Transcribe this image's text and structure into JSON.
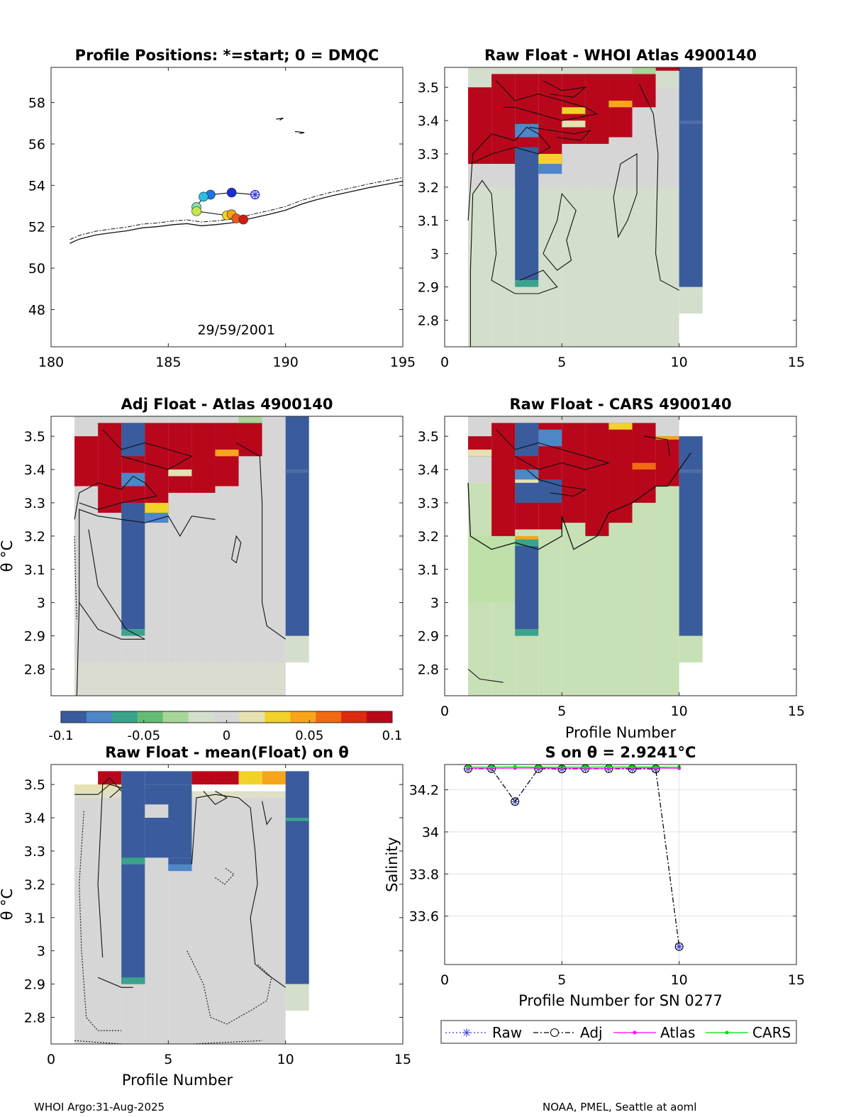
{
  "footer": {
    "left": "WHOI Argo:31-Aug-2025",
    "right": "NOAA, PMEL, Seattle at aoml"
  },
  "colors": {
    "raw": "#3b3bd6",
    "adj": "#000000",
    "atlas": "#ff00ff",
    "cars": "#00e000",
    "colormap": [
      "#3a5c9d",
      "#4f86c6",
      "#3aa38c",
      "#64bc74",
      "#a6d69a",
      "#d3dfcc",
      "#d6d6d6",
      "#e5e1b0",
      "#f1d22a",
      "#f7a51a",
      "#f06a12",
      "#dc2a10",
      "#b8071b"
    ]
  },
  "chart_data": [
    {
      "id": "positions",
      "type": "scatter",
      "title": "Profile Positions: *=start; 0 = DMQC",
      "xlim": [
        180,
        195
      ],
      "ylim": [
        46.2,
        59.7
      ],
      "xticks": [
        "180",
        "185",
        "190",
        "195"
      ],
      "yticks": [
        "48",
        "50",
        "52",
        "54",
        "56",
        "58"
      ],
      "annotation": "29/59/2001",
      "track": [
        {
          "x": 188.7,
          "y": 53.55,
          "c": "#3a3ad8",
          "marker": "star"
        },
        {
          "x": 187.7,
          "y": 53.65,
          "c": "#1a2cd8"
        },
        {
          "x": 186.8,
          "y": 53.55,
          "c": "#1a78e0"
        },
        {
          "x": 186.5,
          "y": 53.45,
          "c": "#27c0e6"
        },
        {
          "x": 186.2,
          "y": 52.95,
          "c": "#7fe3b8"
        },
        {
          "x": 186.2,
          "y": 52.75,
          "c": "#c4e84a"
        },
        {
          "x": 187.5,
          "y": 52.55,
          "c": "#f3d51e"
        },
        {
          "x": 187.7,
          "y": 52.6,
          "c": "#f7a21a"
        },
        {
          "x": 187.9,
          "y": 52.4,
          "c": "#ec5a18"
        },
        {
          "x": 188.2,
          "y": 52.35,
          "c": "#cf1f12"
        }
      ]
    },
    {
      "id": "whoi",
      "type": "heatmap",
      "title": "Raw Float - WHOI Atlas  4900140",
      "xlim": [
        0,
        15
      ],
      "ylim": [
        2.72,
        3.56
      ],
      "xticks": [
        "0",
        "5",
        "10",
        "15"
      ],
      "yticks": [
        "2.8",
        "2.9",
        "3",
        "3.1",
        "3.2",
        "3.3",
        "3.4",
        "3.5"
      ]
    },
    {
      "id": "adj",
      "type": "heatmap",
      "title": "Adj Float - Atlas  4900140",
      "ylabel": "θ °C",
      "xlim": [
        0,
        15
      ],
      "ylim": [
        2.72,
        3.56
      ],
      "yticks": [
        "2.8",
        "2.9",
        "3",
        "3.1",
        "3.2",
        "3.3",
        "3.4",
        "3.5"
      ],
      "colorbar": {
        "ticks": [
          "-0.1",
          "-0.05",
          "0",
          "0.05",
          "0.1"
        ],
        "range": [
          -0.1,
          0.1
        ]
      }
    },
    {
      "id": "cars",
      "type": "heatmap",
      "title": "Raw Float - CARS  4900140",
      "xlabel": "Profile Number",
      "xlim": [
        0,
        15
      ],
      "ylim": [
        2.72,
        3.56
      ],
      "xticks": [
        "0",
        "5",
        "10",
        "15"
      ],
      "yticks": [
        "2.8",
        "2.9",
        "3",
        "3.1",
        "3.2",
        "3.3",
        "3.4",
        "3.5"
      ]
    },
    {
      "id": "mean",
      "type": "heatmap",
      "title": "Raw Float - mean(Float) on θ",
      "xlabel": "Profile Number",
      "ylabel": "θ °C",
      "xlim": [
        0,
        15
      ],
      "ylim": [
        2.72,
        3.56
      ],
      "xticks": [
        "0",
        "5",
        "10",
        "15"
      ],
      "yticks": [
        "2.8",
        "2.9",
        "3",
        "3.1",
        "3.2",
        "3.3",
        "3.4",
        "3.5"
      ]
    },
    {
      "id": "salinity",
      "type": "line",
      "title": "S on θ = 2.9241°C",
      "xlabel": "Profile Number for SN 0277",
      "ylabel": "Salinity",
      "xlim": [
        0,
        15
      ],
      "ylim": [
        33.37,
        34.32
      ],
      "xticks": [
        "0",
        "5",
        "10",
        "15"
      ],
      "yticks": [
        "33.6",
        "33.8",
        "34",
        "34.2"
      ],
      "x": [
        1,
        2,
        3,
        4,
        5,
        6,
        7,
        8,
        9,
        10
      ],
      "series": [
        {
          "name": "Raw",
          "values": [
            34.3,
            34.3,
            34.144,
            34.3,
            34.299,
            34.3,
            34.3,
            34.299,
            34.299,
            33.455
          ]
        },
        {
          "name": "Adj",
          "values": [
            34.3,
            34.3,
            34.144,
            34.3,
            34.299,
            34.3,
            34.3,
            34.299,
            34.299,
            33.455
          ]
        },
        {
          "name": "Atlas",
          "values": [
            34.302,
            34.302,
            34.303,
            34.303,
            34.302,
            34.302,
            34.302,
            34.303,
            34.303,
            34.302
          ]
        },
        {
          "name": "CARS",
          "values": [
            34.308,
            34.308,
            34.309,
            34.308,
            34.308,
            34.308,
            34.309,
            34.309,
            34.308,
            34.308
          ]
        }
      ]
    }
  ]
}
